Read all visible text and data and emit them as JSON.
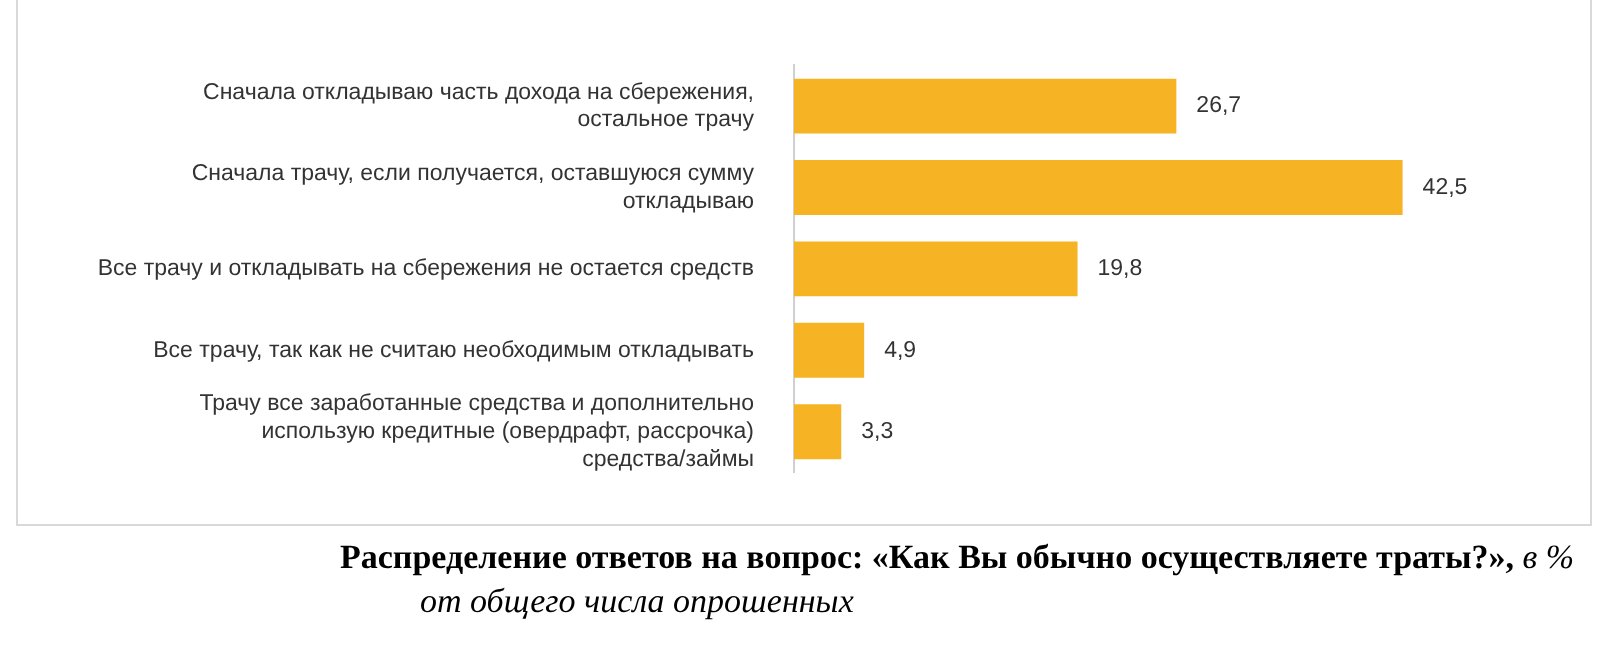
{
  "chart_data": {
    "type": "bar",
    "orientation": "horizontal",
    "title": "Распределение ответов на вопрос: «Как Вы обычно осуществляете траты?»,",
    "subtitle": "в % от общего числа опрошенных",
    "categories": [
      "Сначала откладываю часть дохода на сбережения, остальное трачу",
      "Сначала трачу, если получается, оставшуюся сумму откладываю",
      "Все трачу и откладывать на сбережения не остается средств",
      "Все трачу, так как не считаю необходимым откладывать",
      "Трачу все заработанные средства и дополнительно использую кредитные (овердрафт, рассрочка) средства/займы"
    ],
    "values": [
      26.7,
      42.5,
      19.8,
      4.9,
      3.3
    ],
    "value_labels": [
      "26,7",
      "42,5",
      "19,8",
      "4,9",
      "3,3"
    ],
    "color": "#f6b324",
    "legend": false,
    "tick_labels": "y"
  }
}
